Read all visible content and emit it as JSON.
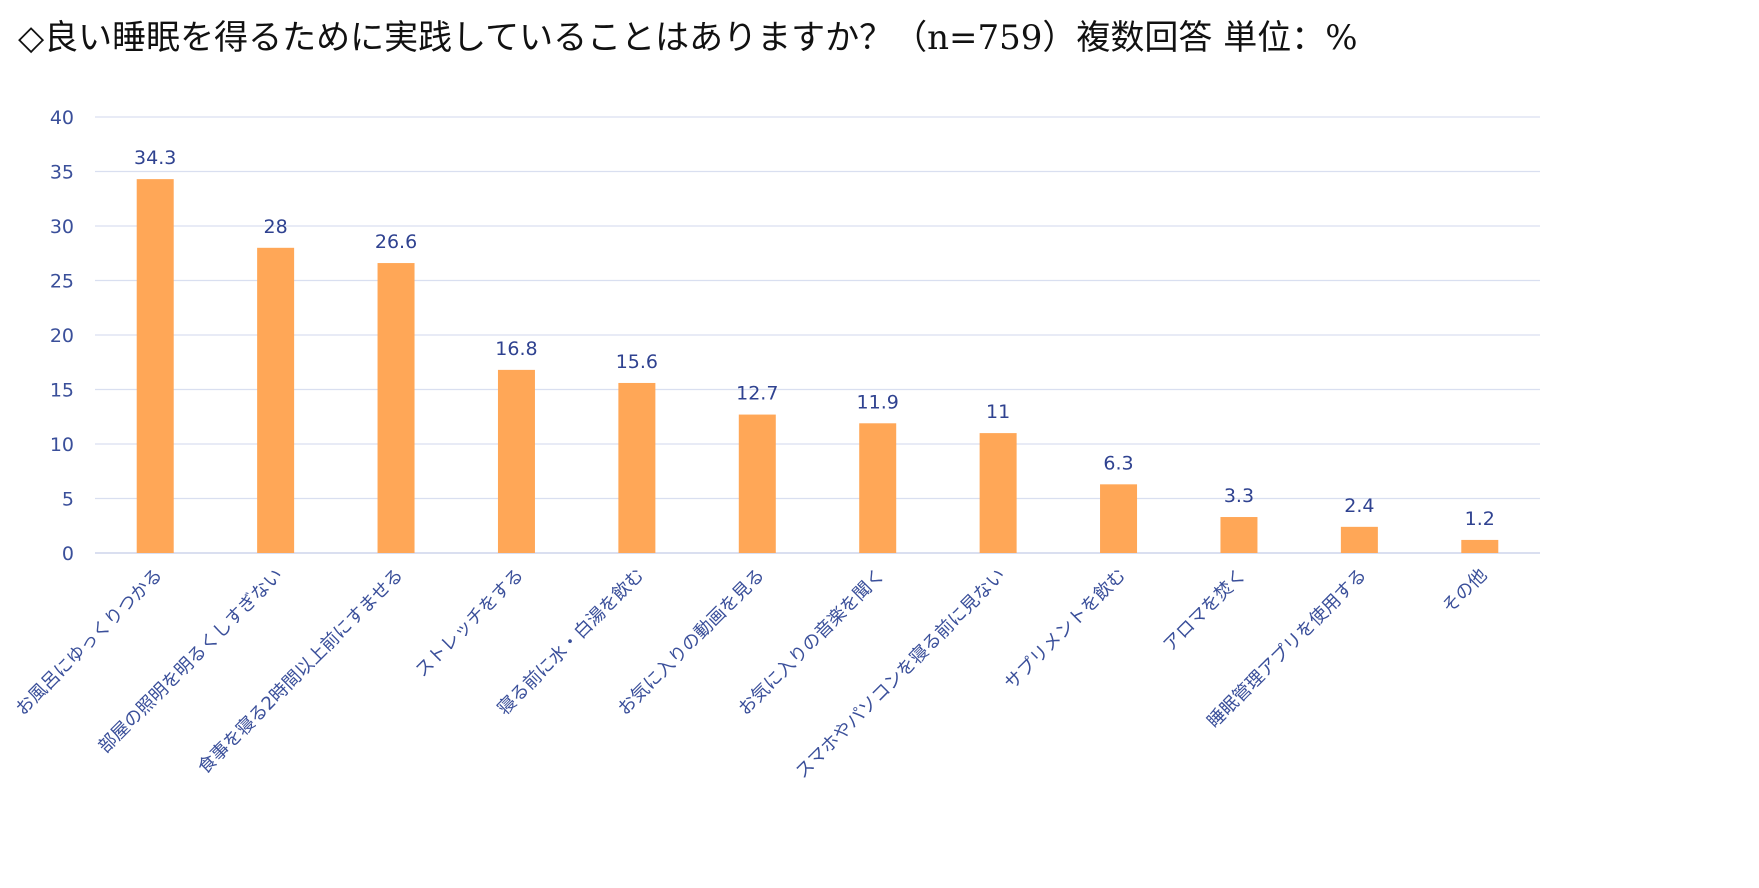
{
  "title": "◇良い睡眠を得るために実践していることはありますか？（n=759）複数回答 単位：%",
  "chart_data": {
    "type": "bar",
    "title": "◇良い睡眠を得るために実践していることはありますか？（n=759）複数回答 単位：%",
    "xlabel": "",
    "ylabel": "",
    "ylim": [
      0,
      40
    ],
    "yticks": [
      0,
      5,
      10,
      15,
      20,
      25,
      30,
      35,
      40
    ],
    "grid": true,
    "legend": "none",
    "bar_color": "#ffa757",
    "grid_color": "#d9dff0",
    "text_color": "#3a4f9a",
    "categories": [
      "お風呂にゆっくりつかる",
      "部屋の照明を明るくしすぎない",
      "食事を寝る2時間以上前にすませる",
      "ストレッチをする",
      "寝る前に水・白湯を飲む",
      "お気に入りの動画を見る",
      "お気に入りの音楽を聞く",
      "スマホやパソコンを寝る前に見ない",
      "サプリメントを飲む",
      "アロマを焚く",
      "睡眠管理アプリを使用する",
      "その他"
    ],
    "values": [
      34.3,
      28,
      26.6,
      16.8,
      15.6,
      12.7,
      11.9,
      11,
      6.3,
      3.3,
      2.4,
      1.2
    ],
    "data_labels": [
      "34.3",
      "28",
      "26.6",
      "16.8",
      "15.6",
      "12.7",
      "11.9",
      "11",
      "6.3",
      "3.3",
      "2.4",
      "1.2"
    ]
  }
}
